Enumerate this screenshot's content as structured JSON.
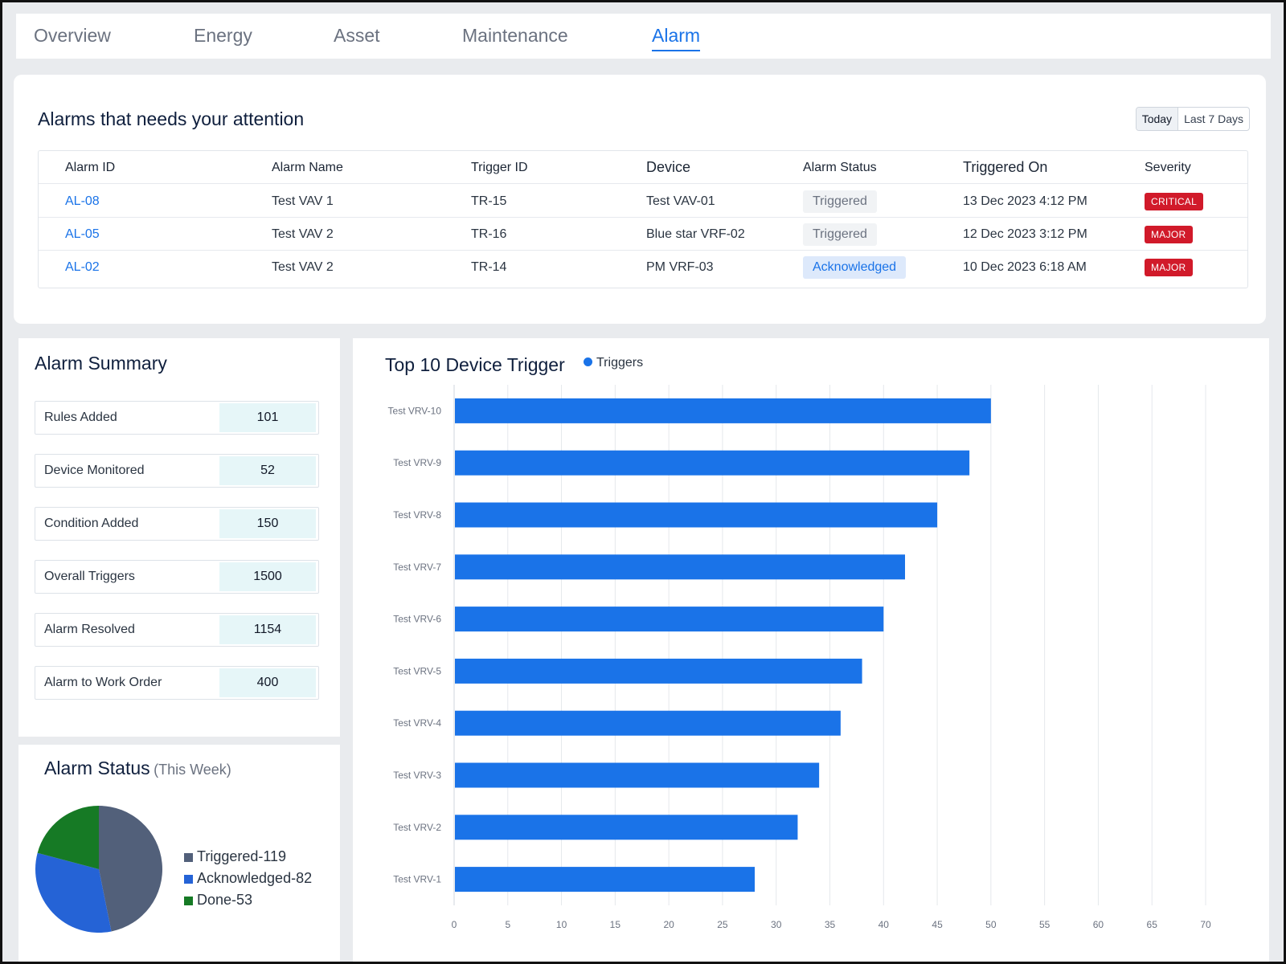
{
  "tabs": [
    {
      "label": "Overview",
      "active": false
    },
    {
      "label": "Energy",
      "active": false
    },
    {
      "label": "Asset",
      "active": false
    },
    {
      "label": "Maintenance",
      "active": false
    },
    {
      "label": "Alarm",
      "active": true
    }
  ],
  "alarms": {
    "title": "Alarms that needs your attention",
    "range_options": [
      "Today",
      "Last 7 Days"
    ],
    "range_selected": "Today",
    "columns": [
      "Alarm ID",
      "Alarm Name",
      "Trigger ID",
      "Device",
      "Alarm Status",
      "Triggered On",
      "Severity"
    ],
    "rows": [
      {
        "id": "AL-08",
        "name": "Test VAV 1",
        "trigger": "TR-15",
        "device": "Test VAV-01",
        "status": "Triggered",
        "on": "13 Dec 2023 4:12 PM",
        "severity": "CRITICAL"
      },
      {
        "id": "AL-05",
        "name": "Test VAV 2",
        "trigger": "TR-16",
        "device": "Blue star VRF-02",
        "status": "Triggered",
        "on": "12 Dec 2023 3:12 PM",
        "severity": "MAJOR"
      },
      {
        "id": "AL-02",
        "name": "Test VAV 2",
        "trigger": "TR-14",
        "device": "PM VRF-03",
        "status": "Acknowledged",
        "on": "10 Dec 2023 6:18 AM",
        "severity": "MAJOR"
      }
    ]
  },
  "summary": {
    "title": "Alarm Summary",
    "items": [
      {
        "label": "Rules Added",
        "value": "101"
      },
      {
        "label": "Device Monitored",
        "value": "52"
      },
      {
        "label": "Condition Added",
        "value": "150"
      },
      {
        "label": "Overall Triggers",
        "value": "1500"
      },
      {
        "label": "Alarm Resolved",
        "value": "1154"
      },
      {
        "label": "Alarm to Work Order",
        "value": "400"
      }
    ]
  },
  "status": {
    "title": "Alarm Status",
    "subtitle": "(This Week)",
    "slices": [
      {
        "label": "Triggered-119",
        "value": 119,
        "color": "#52607a"
      },
      {
        "label": "Acknowledged-82",
        "value": 82,
        "color": "#2563d6"
      },
      {
        "label": "Done-53",
        "value": 53,
        "color": "#167a25"
      }
    ]
  },
  "chart_data": {
    "type": "bar",
    "orientation": "horizontal",
    "title": "Top 10 Device Trigger",
    "categories": [
      "Test VRV-10",
      "Test VRV-9",
      "Test VRV-8",
      "Test VRV-7",
      "Test VRV-6",
      "Test VRV-5",
      "Test VRV-4",
      "Test VRV-3",
      "Test VRV-2",
      "Test VRV-1"
    ],
    "series": [
      {
        "name": "Triggers",
        "values": [
          50,
          48,
          45,
          42,
          40,
          38,
          36,
          34,
          32,
          28
        ]
      }
    ],
    "xlim": [
      0,
      70
    ],
    "xticks": [
      "0",
      "5",
      "10",
      "15",
      "20",
      "25",
      "30",
      "35",
      "40",
      "45",
      "50",
      "55",
      "60",
      "65",
      "70"
    ],
    "grid": true,
    "legend": "top",
    "color": "#1a73e8"
  }
}
